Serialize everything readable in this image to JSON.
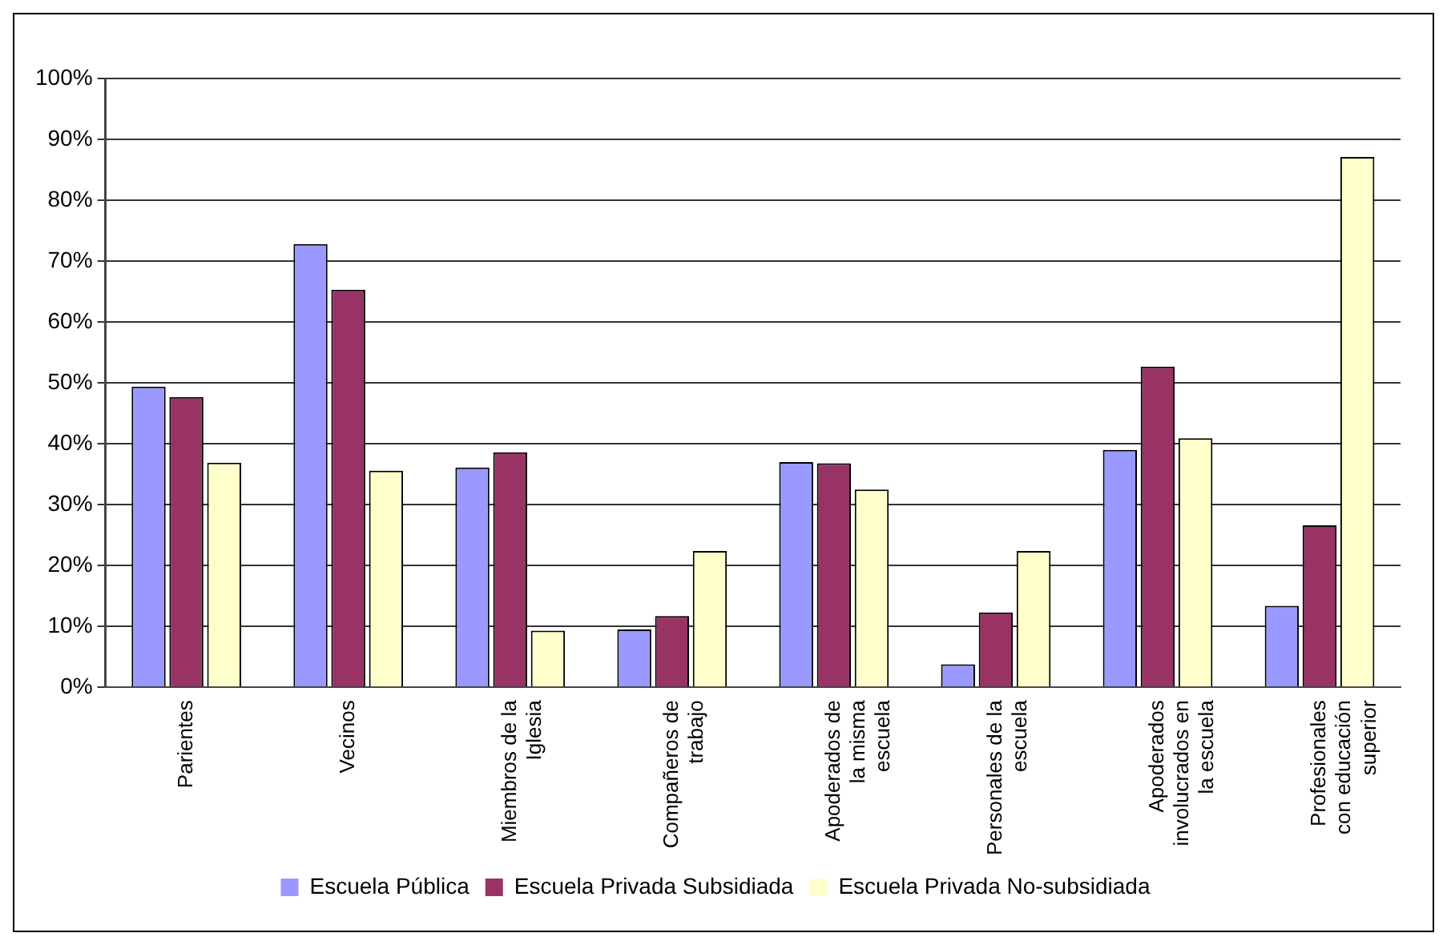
{
  "chart_data": {
    "type": "bar",
    "categories": [
      "Parientes",
      "Vecinos",
      "Miembros de la\nIglesia",
      "Compañeros de\ntrabajo",
      "Apoderados de\nla misma\nescuela",
      "Personales de la\nescuela",
      "Apoderados\ninvolucrados en\nla escuela",
      "Profesionales\ncon educación\nsuperior"
    ],
    "series": [
      {
        "name": "Escuela Pública",
        "color": "#9999ff",
        "values": [
          49.4,
          72.8,
          36.1,
          9.5,
          37.0,
          3.8,
          39.0,
          13.4
        ]
      },
      {
        "name": "Escuela Privada Subsidiada",
        "color": "#993366",
        "values": [
          47.7,
          65.3,
          38.6,
          11.7,
          36.8,
          12.3,
          52.7,
          26.6
        ]
      },
      {
        "name": "Escuela Privada No-subsidiada",
        "color": "#ffffcc",
        "values": [
          36.9,
          35.6,
          9.3,
          22.4,
          32.5,
          22.4,
          40.9,
          87.1
        ]
      }
    ],
    "ylim": [
      0,
      100
    ],
    "yticks": [
      {
        "value": 0,
        "label": "0%"
      },
      {
        "value": 10,
        "label": "10%"
      },
      {
        "value": 20,
        "label": "20%"
      },
      {
        "value": 30,
        "label": "30%"
      },
      {
        "value": 40,
        "label": "40%"
      },
      {
        "value": 50,
        "label": "50%"
      },
      {
        "value": 60,
        "label": "60%"
      },
      {
        "value": 70,
        "label": "70%"
      },
      {
        "value": 80,
        "label": "80%"
      },
      {
        "value": 90,
        "label": "90%"
      },
      {
        "value": 100,
        "label": "100%"
      }
    ],
    "grid": "y",
    "legend": "bottom"
  }
}
